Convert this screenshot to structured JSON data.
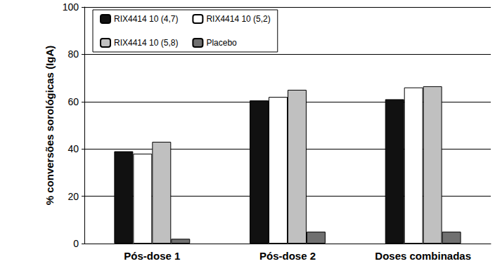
{
  "chart_data": {
    "type": "bar",
    "y_label": "% conversões sorológicas (IgA)",
    "categories": [
      "Pós-dose 1",
      "Pós-dose 2",
      "Doses combinadas"
    ],
    "series": [
      {
        "name": "RIX4414 10 (4,7)",
        "color": "#111111",
        "values": [
          39,
          60.5,
          61
        ]
      },
      {
        "name": "RIX4414 10 (5,2)",
        "color": "#ffffff",
        "values": [
          38,
          62,
          66
        ]
      },
      {
        "name": "RIX4414 10 (5,8)",
        "color": "#c0c0c0",
        "values": [
          43,
          65,
          66.5
        ]
      },
      {
        "name": "Placebo",
        "color": "#707070",
        "values": [
          2,
          5,
          5
        ]
      }
    ],
    "ylim": [
      0,
      100
    ],
    "yticks": [
      0,
      20,
      40,
      60,
      80,
      100
    ],
    "grid": true,
    "legend": "top-left"
  }
}
